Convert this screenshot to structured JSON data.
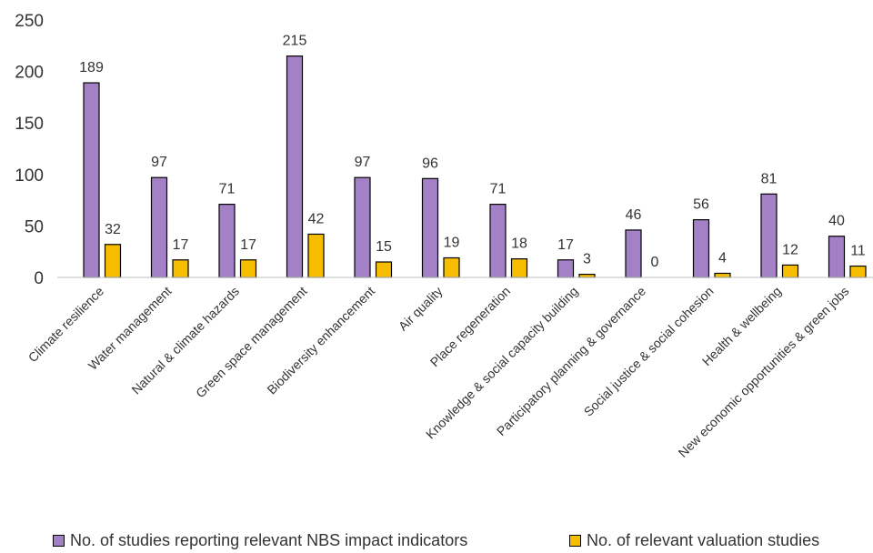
{
  "chart_data": {
    "type": "bar",
    "categories": [
      "Climate resilience",
      "Water management",
      "Natural & climate hazards",
      "Green space management",
      "Biodiversity enhancement",
      "Air quality",
      "Place regeneration",
      "Knowledge & social capacity building",
      "Participatory planning & governance",
      "Social justice & social cohesion",
      "Health & wellbeing",
      "New economic opportunities & green jobs"
    ],
    "series": [
      {
        "name": "No. of studies reporting relevant NBS impact indicators",
        "color": "#A481C6",
        "values": [
          189,
          97,
          71,
          215,
          97,
          96,
          71,
          17,
          46,
          56,
          81,
          40
        ]
      },
      {
        "name": "No. of relevant valuation studies",
        "color": "#F7BE00",
        "values": [
          32,
          17,
          17,
          42,
          15,
          19,
          18,
          3,
          0,
          4,
          12,
          11
        ]
      }
    ],
    "data_label_texts": [
      [
        "189",
        "97",
        "71",
        "215",
        "97",
        "96",
        "71",
        "17",
        "46",
        "56",
        "81",
        "40"
      ],
      [
        "32",
        "17",
        "17",
        "42",
        "15",
        "19",
        "18",
        "3",
        "0",
        "4",
        "12",
        "11"
      ]
    ],
    "ylim": [
      0,
      250
    ],
    "yticks": [
      "0",
      "50",
      "100",
      "150",
      "200",
      "250"
    ],
    "grid": false,
    "legend_position": "bottom"
  }
}
